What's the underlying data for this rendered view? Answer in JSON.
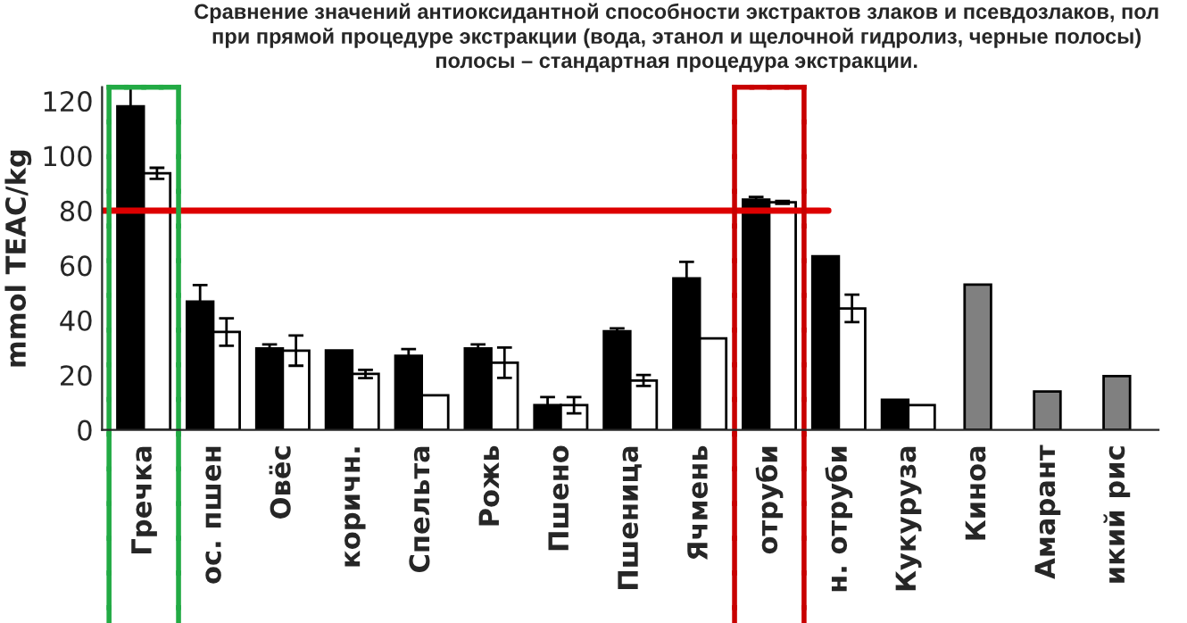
{
  "chart_data": {
    "type": "bar",
    "title": "Сравнение значений антиоксидантной способности экстрактов злаков и псевдозлаков, пол\nпри прямой процедуре экстракции (вода, этанол и щелочной гидролиз, черные полосы)\nполосы – стандартная процедура экстракции.",
    "ylabel": "mmol TEAC/kg",
    "categories": [
      "Гречка",
      "ос. пшен",
      "Овёс",
      "коричн.",
      "Спельта",
      "Рожь",
      "Пшено",
      "Пшеница",
      "Ячмень",
      "отруби",
      "н. отруби",
      "Кукуруза",
      "Киноа",
      "Амарант",
      "икий рис"
    ],
    "series": [
      {
        "color": "#000000",
        "values": [
          118,
          46.8,
          29.7,
          29,
          27,
          29.7,
          9,
          36,
          55.3,
          84,
          63.3,
          11,
          null,
          null,
          null
        ],
        "errors": [
          8,
          6,
          1.5,
          null,
          2.5,
          1.5,
          3,
          1,
          6,
          1,
          null,
          null,
          null,
          null,
          null
        ]
      },
      {
        "color": "#ffffff",
        "values": [
          93.6,
          35.7,
          28.9,
          20.4,
          12.6,
          24.5,
          9,
          18,
          33.4,
          83,
          44.3,
          9,
          null,
          null,
          null
        ],
        "errors": [
          2,
          5,
          5.5,
          1.5,
          null,
          5.5,
          3,
          2,
          null,
          0.5,
          5,
          null,
          null,
          null,
          null
        ]
      },
      {
        "color": "#808080",
        "values": [
          null,
          null,
          null,
          null,
          null,
          null,
          null,
          null,
          null,
          null,
          null,
          null,
          53,
          14,
          19.6
        ]
      }
    ],
    "ylim": [
      0,
      125
    ],
    "yticks": [
      0,
      20,
      40,
      60,
      80,
      100,
      120
    ],
    "ref_lines": [
      {
        "axis": "y",
        "value": 80,
        "color": "#dd0000"
      }
    ],
    "grid": false,
    "legend": false
  }
}
